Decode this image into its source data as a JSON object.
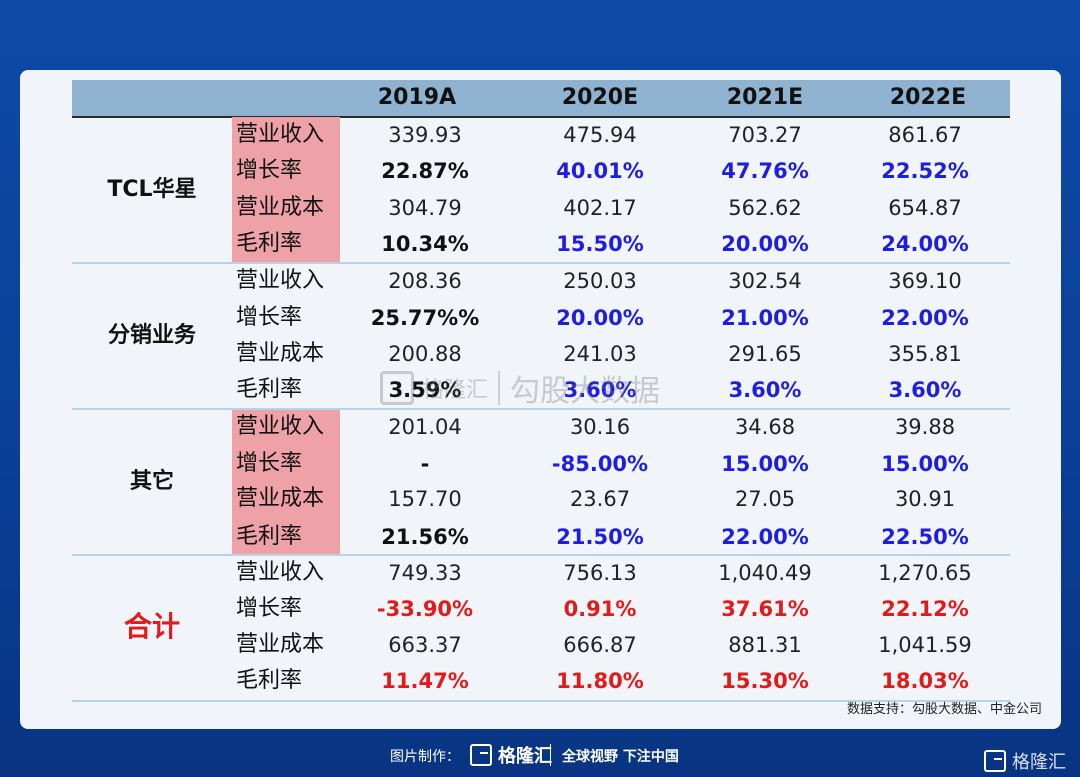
{
  "years": [
    "2019A",
    "2020E",
    "2021E",
    "2022E"
  ],
  "metrics": [
    "营业收入",
    "增长率",
    "营业成本",
    "毛利率"
  ],
  "segments": [
    {
      "name": "TCL华星",
      "total": false,
      "pink": true,
      "rows": [
        [
          "339.93",
          "475.94",
          "703.27",
          "861.67"
        ],
        [
          "22.87%",
          "40.01%",
          "47.76%",
          "22.52%"
        ],
        [
          "304.79",
          "402.17",
          "562.62",
          "654.87"
        ],
        [
          "10.34%",
          "15.50%",
          "20.00%",
          "24.00%"
        ]
      ]
    },
    {
      "name": "分销业务",
      "total": false,
      "pink": false,
      "rows": [
        [
          "208.36",
          "250.03",
          "302.54",
          "369.10"
        ],
        [
          "25.77%%",
          "20.00%",
          "21.00%",
          "22.00%"
        ],
        [
          "200.88",
          "241.03",
          "291.65",
          "355.81"
        ],
        [
          "3.59%",
          "3.60%",
          "3.60%",
          "3.60%"
        ]
      ]
    },
    {
      "name": "其它",
      "total": false,
      "pink": true,
      "rows": [
        [
          "201.04",
          "30.16",
          "34.68",
          "39.88"
        ],
        [
          "-",
          "-85.00%",
          "15.00%",
          "15.00%"
        ],
        [
          "157.70",
          "23.67",
          "27.05",
          "30.91"
        ],
        [
          "21.56%",
          "21.50%",
          "22.00%",
          "22.50%"
        ]
      ]
    },
    {
      "name": "合计",
      "total": true,
      "pink": false,
      "rows": [
        [
          "749.33",
          "756.13",
          "1,040.49",
          "1,270.65"
        ],
        [
          "-33.90%",
          "0.91%",
          "37.61%",
          "22.12%"
        ],
        [
          "663.37",
          "666.87",
          "881.31",
          "1,041.59"
        ],
        [
          "11.47%",
          "11.80%",
          "15.30%",
          "18.03%"
        ]
      ]
    }
  ],
  "colors": {
    "estimate_pct": "#1d1ee0",
    "total_pct": "#e21a1a",
    "pink": "#eea2a7",
    "header": "#8eb2cf"
  },
  "source_note": "数据支持：勾股大数据、中金公司",
  "watermark": {
    "brand": "格隆汇",
    "text": "勾股大数据"
  },
  "footer": {
    "maker_label": "图片制作：",
    "brand": "格隆汇",
    "slogan": "全球视野 下注中国"
  },
  "corner_brand": "格隆汇"
}
